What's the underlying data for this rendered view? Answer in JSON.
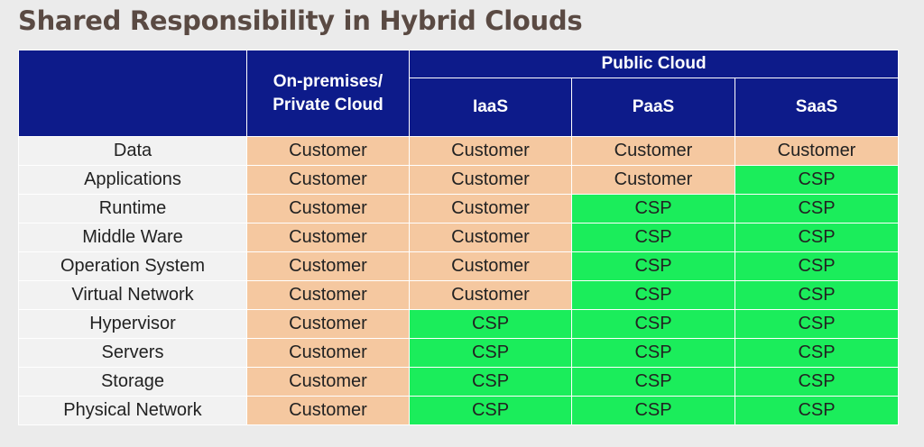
{
  "title": "Shared Responsibility in Hybrid Clouds",
  "colors": {
    "header": "#0d1b8a",
    "customer": "#f5c8a0",
    "csp": "#1bed5b"
  },
  "header": {
    "corner": "",
    "on_prem_line1": "On-premises/",
    "on_prem_line2": "Private Cloud",
    "public_cloud": "Public Cloud",
    "columns": [
      "IaaS",
      "PaaS",
      "SaaS"
    ]
  },
  "rows": [
    {
      "label": "Data",
      "cells": [
        "Customer",
        "Customer",
        "Customer",
        "Customer"
      ]
    },
    {
      "label": "Applications",
      "cells": [
        "Customer",
        "Customer",
        "Customer",
        "CSP"
      ]
    },
    {
      "label": "Runtime",
      "cells": [
        "Customer",
        "Customer",
        "CSP",
        "CSP"
      ]
    },
    {
      "label": "Middle Ware",
      "cells": [
        "Customer",
        "Customer",
        "CSP",
        "CSP"
      ]
    },
    {
      "label": "Operation System",
      "cells": [
        "Customer",
        "Customer",
        "CSP",
        "CSP"
      ]
    },
    {
      "label": "Virtual Network",
      "cells": [
        "Customer",
        "Customer",
        "CSP",
        "CSP"
      ]
    },
    {
      "label": "Hypervisor",
      "cells": [
        "Customer",
        "CSP",
        "CSP",
        "CSP"
      ]
    },
    {
      "label": "Servers",
      "cells": [
        "Customer",
        "CSP",
        "CSP",
        "CSP"
      ]
    },
    {
      "label": "Storage",
      "cells": [
        "Customer",
        "CSP",
        "CSP",
        "CSP"
      ]
    },
    {
      "label": "Physical Network",
      "cells": [
        "Customer",
        "CSP",
        "CSP",
        "CSP"
      ]
    }
  ]
}
